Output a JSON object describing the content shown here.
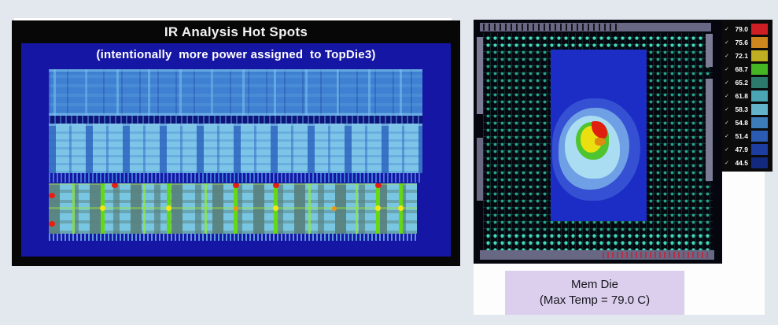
{
  "left_figure": {
    "title": "IR Analysis Hot Spots",
    "subtitle": "(intentionally  more power assigned  to TopDie3)"
  },
  "right_figure": {
    "legend": {
      "check_glyph": "✓",
      "entries": [
        {
          "value": "79.0",
          "color": "#cf1f25"
        },
        {
          "value": "75.6",
          "color": "#cd861e"
        },
        {
          "value": "72.1",
          "color": "#bfae22"
        },
        {
          "value": "68.7",
          "color": "#45b524"
        },
        {
          "value": "65.2",
          "color": "#2b7a6c"
        },
        {
          "value": "61.8",
          "color": "#4aa4b4"
        },
        {
          "value": "58.3",
          "color": "#63b4cb"
        },
        {
          "value": "54.8",
          "color": "#3d7cba"
        },
        {
          "value": "51.4",
          "color": "#2a5ab2"
        },
        {
          "value": "47.9",
          "color": "#1d3da0"
        },
        {
          "value": "44.5",
          "color": "#13297e"
        }
      ]
    },
    "label_line1": "Mem Die",
    "label_line2": "(Max Temp = 79.0 C)"
  },
  "chart_data": [
    {
      "type": "heatmap",
      "title": "IR Analysis Hot Spots",
      "subtitle": "(intentionally  more power assigned  to TopDie3)",
      "description": "IR-drop heatmap of three stacked die bands on a navy background; top band mostly medium blue, middle band mostly light blue, bottom band (TopDie3) shows hot spots",
      "bands": [
        {
          "position": "top",
          "dominant_colors": [
            "#3f80d2",
            "#78bee8"
          ],
          "hot_spots": false
        },
        {
          "position": "middle",
          "dominant_colors": [
            "#7cc4e8",
            "#2f64be"
          ],
          "hot_spots": false
        },
        {
          "position": "bottom",
          "dominant_colors": [
            "#78c6e2",
            "#588280",
            "#64d813",
            "#f2e713",
            "#e81f10"
          ],
          "hot_spots": true
        }
      ],
      "background_color": "#1616a4"
    },
    {
      "type": "heatmap",
      "title": "Mem Die (Max Temp = 79.0 C)",
      "max_temp_c": 79.0,
      "min_scale_c": 44.5,
      "legend_values_c": [
        79.0,
        75.6,
        72.1,
        68.7,
        65.2,
        61.8,
        58.3,
        54.8,
        51.4,
        47.9,
        44.5
      ],
      "legend_position": "right",
      "description": "Thermal map of a memory die (blue rectangle) on a package/bump-grid layout; single hot spot left-of-center with red peak surrounded by yellow, green, pale cyan and blue contours",
      "die_base_color": "#1b2dc4",
      "hot_spot_colors": [
        "#e01f0e",
        "#ecdf10",
        "#4ec42e",
        "#aadcf2",
        "#6f9fe4",
        "#3550d2"
      ]
    }
  ]
}
